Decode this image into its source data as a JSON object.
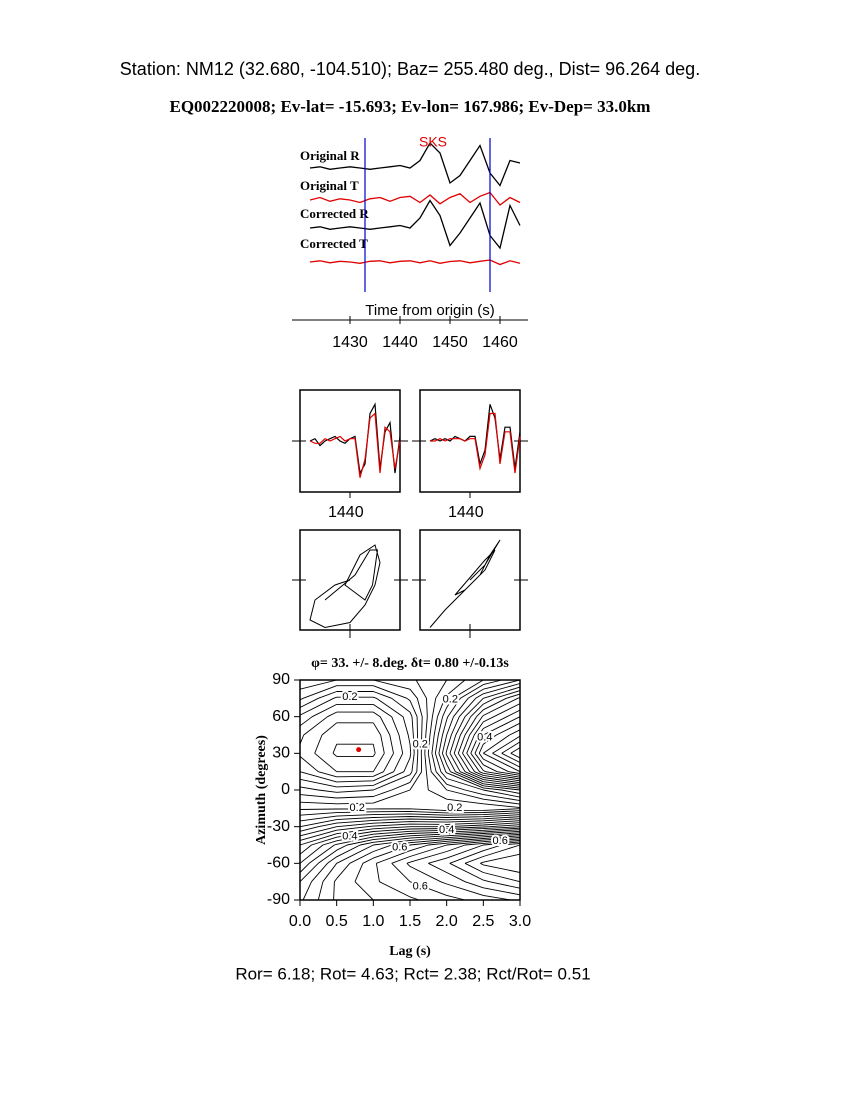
{
  "header": {
    "station": "Station: NM12 (32.680, -104.510); Baz=  255.480 deg., Dist=   96.264 deg.",
    "event": "EQ002220008; Ev-lat= -15.693; Ev-lon= 167.986; Ev-Dep= 33.0km"
  },
  "footer": "Ror= 6.18; Rot= 4.63; Rct= 2.38; Rct/Rot= 0.51",
  "chart_data": [
    {
      "type": "waveform",
      "xlabel": "Time from origin (s)",
      "xlim": [
        1420,
        1464
      ],
      "xticks": [
        1430,
        1440,
        1450,
        1460
      ],
      "markers": [
        1433,
        1458
      ],
      "phase": {
        "label": "SKS",
        "time": 1447
      },
      "x": [
        1422,
        1424,
        1426,
        1428,
        1430,
        1432,
        1434,
        1436,
        1438,
        1440,
        1442,
        1444,
        1446,
        1448,
        1450,
        1452,
        1454,
        1456,
        1458,
        1460,
        1462,
        1464
      ],
      "series": [
        {
          "name": "Original R",
          "color": "#000000",
          "values": [
            0,
            0.05,
            -0.05,
            0,
            0.05,
            0,
            -0.05,
            0,
            0.05,
            0.1,
            0,
            0.3,
            1.0,
            0.6,
            -0.6,
            -0.3,
            0.3,
            0.9,
            -0.2,
            -0.7,
            0.3,
            0.2
          ]
        },
        {
          "name": "Original T",
          "color": "#e00000",
          "values": [
            0,
            0.1,
            -0.05,
            0.05,
            0,
            -0.1,
            0.05,
            0.1,
            -0.05,
            0.1,
            0.15,
            -0.1,
            0.2,
            -0.15,
            0.1,
            0.25,
            -0.1,
            0.15,
            0.3,
            -0.2,
            0.1,
            -0.1
          ]
        },
        {
          "name": "Corrected R",
          "color": "#000000",
          "values": [
            0,
            0.05,
            -0.05,
            0,
            0.05,
            0,
            -0.05,
            0,
            0.05,
            0.1,
            0,
            0.4,
            1.1,
            0.5,
            -0.7,
            -0.2,
            0.4,
            1.0,
            -0.3,
            -0.8,
            0.9,
            0.1
          ]
        },
        {
          "name": "Corrected T",
          "color": "#e00000",
          "values": [
            0,
            0.05,
            -0.03,
            0.03,
            0,
            -0.05,
            0.03,
            0.05,
            -0.03,
            0.03,
            0.05,
            -0.03,
            0.05,
            -0.05,
            0.02,
            0.05,
            -0.03,
            0.03,
            0.08,
            -0.1,
            0.05,
            -0.05
          ]
        }
      ]
    },
    {
      "type": "line",
      "xlim": [
        1420,
        1460
      ],
      "ylim": [
        -1,
        1
      ],
      "xticks": [
        1440
      ],
      "x": [
        1424,
        1426,
        1428,
        1430,
        1432,
        1434,
        1436,
        1438,
        1440,
        1442,
        1444,
        1446,
        1448,
        1450,
        1452,
        1454,
        1456,
        1458,
        1460
      ],
      "series": [
        {
          "color": "#000000",
          "values": [
            0,
            0.05,
            -0.1,
            0,
            0.05,
            0.1,
            0,
            -0.05,
            0.05,
            0.1,
            -0.7,
            -0.5,
            0.6,
            0.8,
            -0.6,
            0.2,
            0.4,
            -0.7,
            0.1
          ]
        },
        {
          "color": "#e00000",
          "values": [
            0,
            -0.05,
            -0.05,
            0.05,
            0,
            0.05,
            0.1,
            0,
            0.05,
            0.05,
            -0.8,
            -0.4,
            0.5,
            0.6,
            -0.7,
            0.3,
            0.2,
            -0.6,
            0
          ]
        }
      ]
    },
    {
      "type": "line",
      "xlim": [
        1420,
        1460
      ],
      "ylim": [
        -1,
        1
      ],
      "xticks": [
        1440
      ],
      "x": [
        1424,
        1426,
        1428,
        1430,
        1432,
        1434,
        1436,
        1438,
        1440,
        1442,
        1444,
        1446,
        1448,
        1450,
        1452,
        1454,
        1456,
        1458,
        1460
      ],
      "series": [
        {
          "color": "#000000",
          "values": [
            0,
            0.05,
            0,
            0.05,
            0,
            0.1,
            0.05,
            0,
            0.1,
            0.1,
            -0.5,
            -0.2,
            0.8,
            0.5,
            -0.4,
            0.3,
            0.3,
            -0.6,
            0.2
          ]
        },
        {
          "color": "#e00000",
          "values": [
            0,
            0,
            0.05,
            0,
            0.05,
            0.05,
            0.05,
            0,
            0.05,
            0.05,
            -0.6,
            -0.3,
            0.6,
            0.6,
            -0.5,
            0.2,
            0.2,
            -0.7,
            0.1
          ]
        }
      ]
    },
    {
      "type": "particle",
      "xlim": [
        -1,
        1
      ],
      "ylim": [
        -1,
        1
      ],
      "series": [
        {
          "color": "#000000",
          "x": [
            0,
            -0.3,
            -0.7,
            -0.8,
            -0.5,
            0,
            0.3,
            0.5,
            0.6,
            0.5,
            0.2,
            -0.1,
            0.3,
            0.45,
            0.55,
            0.4,
            0.1,
            -0.5
          ],
          "values": [
            0,
            -0.1,
            -0.4,
            -0.8,
            -0.95,
            -0.85,
            -0.5,
            -0.1,
            0.35,
            0.7,
            0.5,
            -0.1,
            -0.4,
            -0.1,
            0.6,
            0.6,
            0.1,
            -0.4
          ]
        }
      ]
    },
    {
      "type": "particle",
      "xlim": [
        -1,
        1
      ],
      "ylim": [
        -1,
        1
      ],
      "series": [
        {
          "color": "#000000",
          "x": [
            -0.8,
            -0.5,
            -0.2,
            0.1,
            0.3,
            0.5,
            0.3,
            0,
            -0.3,
            -0.1,
            0.2,
            0.4,
            0.6,
            0.3,
            0
          ],
          "values": [
            -0.95,
            -0.6,
            -0.3,
            0,
            0.2,
            0.6,
            0.4,
            0.05,
            -0.3,
            -0.2,
            0.1,
            0.5,
            0.8,
            0.3,
            0
          ]
        }
      ]
    },
    {
      "type": "contour",
      "title": "φ= 33. +/- 8.deg.  δt= 0.80 +/-0.13s",
      "xlabel": "Lag (s)",
      "ylabel": "Azimuth (degrees)",
      "xlim": [
        0,
        3
      ],
      "ylim": [
        -90,
        90
      ],
      "xticks": [
        {
          "value": 0,
          "label": "0.0"
        },
        0.5,
        {
          "value": 1,
          "label": "1.0"
        },
        1.5,
        {
          "value": 2,
          "label": "2.0"
        },
        2.5,
        {
          "value": 3,
          "label": "3.0"
        }
      ],
      "yticks": [
        90,
        60,
        30,
        0,
        -30,
        -60,
        -90
      ],
      "x": [
        0,
        0.5,
        1,
        1.5,
        2,
        2.5,
        3
      ],
      "y": [
        90,
        75,
        60,
        45,
        30,
        15,
        0,
        -15,
        -30,
        -45,
        -60,
        -75,
        -90
      ],
      "z": [
        [
          0.22,
          0.2,
          0.2,
          0.22,
          0.25,
          0.3,
          0.35
        ],
        [
          0.18,
          0.12,
          0.12,
          0.18,
          0.28,
          0.4,
          0.48
        ],
        [
          0.12,
          0.06,
          0.06,
          0.14,
          0.32,
          0.48,
          0.55
        ],
        [
          0.08,
          0.03,
          0.03,
          0.13,
          0.35,
          0.55,
          0.62
        ],
        [
          0.07,
          0.02,
          0.02,
          0.12,
          0.38,
          0.6,
          0.7
        ],
        [
          0.1,
          0.05,
          0.05,
          0.14,
          0.33,
          0.52,
          0.6
        ],
        [
          0.16,
          0.14,
          0.15,
          0.2,
          0.25,
          0.3,
          0.35
        ],
        [
          0.22,
          0.22,
          0.22,
          0.22,
          0.2,
          0.2,
          0.22
        ],
        [
          0.3,
          0.35,
          0.38,
          0.4,
          0.4,
          0.42,
          0.45
        ],
        [
          0.4,
          0.48,
          0.55,
          0.6,
          0.65,
          0.7,
          0.75
        ],
        [
          0.45,
          0.55,
          0.62,
          0.68,
          0.72,
          0.78,
          0.8
        ],
        [
          0.5,
          0.58,
          0.62,
          0.65,
          0.68,
          0.72,
          0.75
        ],
        [
          0.52,
          0.58,
          0.6,
          0.62,
          0.64,
          0.66,
          0.68
        ]
      ],
      "levels": [
        0.025,
        0.05,
        0.075,
        0.1,
        0.125,
        0.15,
        0.175,
        0.2,
        0.225,
        0.25,
        0.275,
        0.3,
        0.325,
        0.35,
        0.375,
        0.4,
        0.425,
        0.45,
        0.475,
        0.5,
        0.525,
        0.55,
        0.575,
        0.6,
        0.625,
        0.65,
        0.675,
        0.7,
        0.725,
        0.75,
        0.775
      ],
      "contour_labels": [
        {
          "x": 0.68,
          "y": 76,
          "value": 0.2
        },
        {
          "x": 2.05,
          "y": 74,
          "value": 0.2
        },
        {
          "x": 1.64,
          "y": 37,
          "value": 0.2
        },
        {
          "x": 2.52,
          "y": 43,
          "value": 0.4
        },
        {
          "x": 0.78,
          "y": -15,
          "value": 0.2
        },
        {
          "x": 2.11,
          "y": -15,
          "value": 0.2
        },
        {
          "x": 0.68,
          "y": -38,
          "value": 0.4
        },
        {
          "x": 2.0,
          "y": -33,
          "value": 0.4
        },
        {
          "x": 1.36,
          "y": -47,
          "value": 0.6
        },
        {
          "x": 2.73,
          "y": -42,
          "value": 0.6
        },
        {
          "x": 1.64,
          "y": -79,
          "value": 0.6
        }
      ],
      "best": {
        "lag": 0.8,
        "azimuth": 33
      }
    }
  ]
}
